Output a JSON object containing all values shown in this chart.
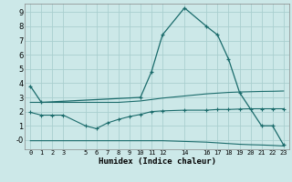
{
  "title": "",
  "xlabel": "Humidex (Indice chaleur)",
  "bg_color": "#cce8e8",
  "grid_color": "#aacfcf",
  "line_color": "#1a6b6b",
  "xlim": [
    -0.5,
    23.5
  ],
  "ylim": [
    -0.65,
    9.6
  ],
  "xticks": [
    0,
    1,
    2,
    3,
    5,
    6,
    7,
    8,
    9,
    10,
    11,
    12,
    14,
    16,
    17,
    18,
    19,
    20,
    21,
    22,
    23
  ],
  "yticks": [
    0,
    1,
    2,
    3,
    4,
    5,
    6,
    7,
    8,
    9
  ],
  "ytick_labels": [
    "-0",
    "1",
    "2",
    "3",
    "4",
    "5",
    "6",
    "7",
    "8",
    "9"
  ],
  "line1_x": [
    0,
    1,
    10,
    11,
    12,
    14,
    16,
    17,
    18,
    19,
    21,
    22,
    23
  ],
  "line1_y": [
    3.8,
    2.65,
    3.0,
    4.8,
    7.4,
    9.3,
    8.0,
    7.4,
    5.7,
    3.35,
    1.0,
    1.0,
    -0.35
  ],
  "line2_x": [
    0,
    1,
    2,
    3,
    5,
    6,
    7,
    8,
    9,
    10,
    11,
    12,
    14,
    16,
    17,
    18,
    19,
    20,
    21,
    22,
    23
  ],
  "line2_y": [
    2.65,
    2.65,
    2.65,
    2.65,
    2.65,
    2.65,
    2.65,
    2.65,
    2.7,
    2.75,
    2.85,
    2.95,
    3.1,
    3.25,
    3.3,
    3.35,
    3.38,
    3.4,
    3.42,
    3.43,
    3.45
  ],
  "line3_x": [
    0,
    1,
    2,
    3,
    5,
    6,
    7,
    8,
    9,
    10,
    11,
    12,
    14,
    16,
    17,
    18,
    19,
    20,
    21,
    22,
    23
  ],
  "line3_y": [
    1.95,
    1.75,
    1.75,
    1.75,
    1.0,
    0.8,
    1.2,
    1.45,
    1.65,
    1.8,
    2.0,
    2.05,
    2.1,
    2.1,
    2.15,
    2.15,
    2.18,
    2.2,
    2.2,
    2.2,
    2.2
  ],
  "line4_x": [
    0,
    1,
    2,
    3,
    5,
    6,
    7,
    8,
    9,
    10,
    11,
    12,
    14,
    16,
    17,
    18,
    19,
    20,
    21,
    22,
    23
  ],
  "line4_y": [
    -0.05,
    -0.05,
    -0.05,
    -0.05,
    -0.05,
    -0.05,
    -0.05,
    -0.05,
    -0.05,
    -0.05,
    -0.05,
    -0.05,
    -0.1,
    -0.15,
    -0.2,
    -0.25,
    -0.3,
    -0.33,
    -0.35,
    -0.38,
    -0.42
  ]
}
